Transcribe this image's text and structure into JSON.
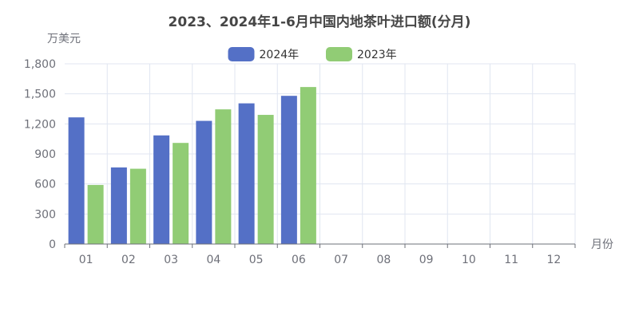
{
  "chart_data": {
    "type": "bar",
    "title": "2023、2024年1-6月中国内地茶叶进口额(分月)",
    "ylabel": "万美元",
    "xlabel": "月份",
    "ylim": [
      0,
      1800
    ],
    "yticks": [
      "0",
      "300",
      "600",
      "900",
      "1,200",
      "1,500",
      "1,800"
    ],
    "categories": [
      "01",
      "02",
      "03",
      "04",
      "05",
      "06",
      "07",
      "08",
      "09",
      "10",
      "11",
      "12"
    ],
    "legend_position": "top-center",
    "grid": true,
    "series": [
      {
        "name": "2024年",
        "color": "#5470c6",
        "values": [
          1265,
          765,
          1085,
          1230,
          1405,
          1480,
          null,
          null,
          null,
          null,
          null,
          null
        ]
      },
      {
        "name": "2023年",
        "color": "#91cc75",
        "values": [
          590,
          752,
          1010,
          1345,
          1290,
          1568,
          null,
          null,
          null,
          null,
          null,
          null
        ]
      }
    ]
  }
}
